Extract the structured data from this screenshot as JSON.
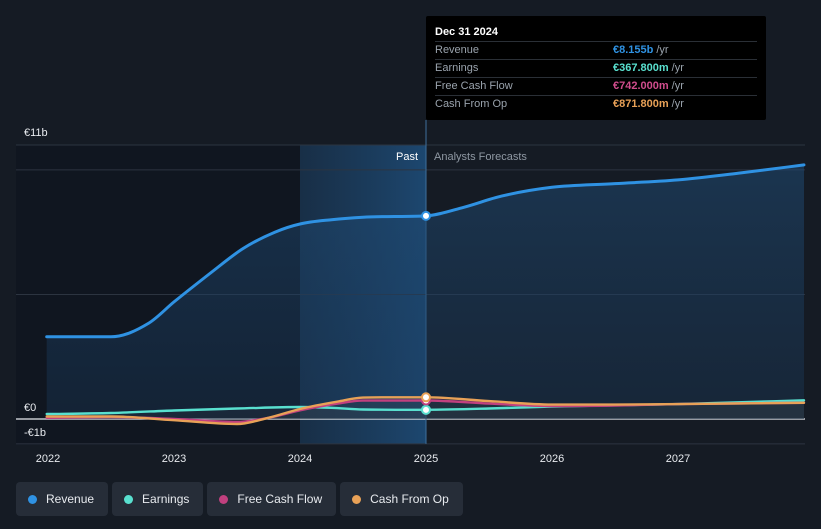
{
  "chart_data": {
    "type": "line",
    "y_axis": {
      "top_label": "€11b",
      "zero_label": "€0",
      "bottom_label": "-€1b",
      "range": [
        -1,
        11
      ]
    },
    "x_axis": {
      "range": [
        2022,
        2028
      ],
      "ticks": [
        {
          "value": 2022,
          "label": "2022"
        },
        {
          "value": 2023,
          "label": "2023"
        },
        {
          "value": 2024,
          "label": "2024"
        },
        {
          "value": 2025,
          "label": "2025"
        },
        {
          "value": 2026,
          "label": "2026"
        },
        {
          "value": 2027,
          "label": "2027"
        }
      ]
    },
    "past_label": "Past",
    "forecast_label": "Analysts Forecasts",
    "divider_x": 2025,
    "highlight_range": [
      2024,
      2025
    ],
    "series": [
      {
        "name": "Revenue",
        "color": "#2f92e3",
        "points": [
          [
            2021.99,
            3.3
          ],
          [
            2022.5,
            3.3
          ],
          [
            2022.8,
            3.85
          ],
          [
            2023.0,
            4.7
          ],
          [
            2023.3,
            5.9
          ],
          [
            2023.55,
            6.85
          ],
          [
            2023.8,
            7.5
          ],
          [
            2024.0,
            7.83
          ],
          [
            2024.25,
            8.0
          ],
          [
            2024.5,
            8.1
          ],
          [
            2024.75,
            8.13
          ],
          [
            2025.0,
            8.155
          ],
          [
            2025.3,
            8.5
          ],
          [
            2025.6,
            8.95
          ],
          [
            2026.0,
            9.3
          ],
          [
            2026.5,
            9.45
          ],
          [
            2027.0,
            9.6
          ],
          [
            2027.5,
            9.88
          ],
          [
            2028.0,
            10.2
          ]
        ]
      },
      {
        "name": "Earnings",
        "color": "#59e0cf",
        "points": [
          [
            2021.99,
            0.2
          ],
          [
            2022.5,
            0.24
          ],
          [
            2023.0,
            0.34
          ],
          [
            2023.5,
            0.42
          ],
          [
            2024.0,
            0.48
          ],
          [
            2024.25,
            0.45
          ],
          [
            2024.5,
            0.38
          ],
          [
            2025.0,
            0.3678
          ],
          [
            2025.5,
            0.42
          ],
          [
            2026.0,
            0.5
          ],
          [
            2027.0,
            0.6
          ],
          [
            2028.0,
            0.75
          ]
        ]
      },
      {
        "name": "Free Cash Flow",
        "color": "#c1407f",
        "points": [
          [
            2021.99,
            0.05
          ],
          [
            2022.5,
            0.08
          ],
          [
            2023.0,
            0.0
          ],
          [
            2023.5,
            -0.12
          ],
          [
            2023.75,
            0.05
          ],
          [
            2024.0,
            0.35
          ],
          [
            2024.3,
            0.62
          ],
          [
            2024.5,
            0.74
          ],
          [
            2024.75,
            0.74
          ],
          [
            2025.0,
            0.742
          ],
          [
            2025.5,
            0.62
          ],
          [
            2026.0,
            0.52
          ],
          [
            2026.5,
            0.54
          ],
          [
            2027.0,
            0.6
          ],
          [
            2028.0,
            0.65
          ]
        ]
      },
      {
        "name": "Cash From Op",
        "color": "#e8a157",
        "points": [
          [
            2021.99,
            0.1
          ],
          [
            2022.5,
            0.1
          ],
          [
            2023.0,
            -0.05
          ],
          [
            2023.5,
            -0.2
          ],
          [
            2023.75,
            0.05
          ],
          [
            2024.0,
            0.4
          ],
          [
            2024.3,
            0.7
          ],
          [
            2024.5,
            0.86
          ],
          [
            2024.75,
            0.87
          ],
          [
            2025.0,
            0.8718
          ],
          [
            2025.5,
            0.72
          ],
          [
            2026.0,
            0.58
          ],
          [
            2026.5,
            0.58
          ],
          [
            2027.0,
            0.6
          ],
          [
            2028.0,
            0.65
          ]
        ]
      }
    ],
    "tooltip": {
      "date": "Dec 31 2024",
      "rows": [
        {
          "label": "Revenue",
          "value": "€8.155b",
          "unit": "/yr",
          "color": "#2f92e3"
        },
        {
          "label": "Earnings",
          "value": "€367.800m",
          "unit": "/yr",
          "color": "#59e0cf"
        },
        {
          "label": "Free Cash Flow",
          "value": "€742.000m",
          "unit": "/yr",
          "color": "#c1407f"
        },
        {
          "label": "Cash From Op",
          "value": "€871.800m",
          "unit": "/yr",
          "color": "#e8a157"
        }
      ]
    },
    "legend": [
      {
        "name": "Revenue",
        "color": "#2f92e3"
      },
      {
        "name": "Earnings",
        "color": "#59e0cf"
      },
      {
        "name": "Free Cash Flow",
        "color": "#c1407f"
      },
      {
        "name": "Cash From Op",
        "color": "#e8a157"
      }
    ]
  }
}
